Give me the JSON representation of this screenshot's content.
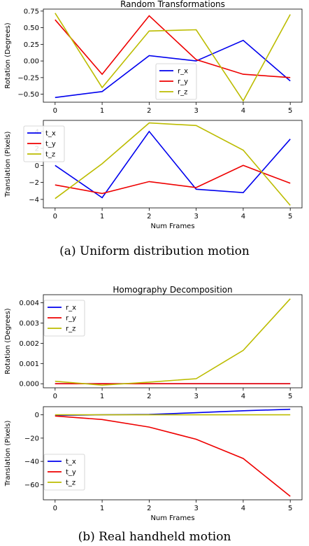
{
  "captions": {
    "a": "(a) Uniform distribution motion",
    "b": "(b) Real handheld motion"
  },
  "chart_data": [
    {
      "type": "line",
      "title": "Random Transformations",
      "xlabel": "",
      "ylabel": "Rotation (Degrees)",
      "x": [
        0,
        1,
        2,
        3,
        4,
        5
      ],
      "ylim": [
        -0.62,
        0.78
      ],
      "yticks": [
        -0.5,
        -0.25,
        0.0,
        0.25,
        0.5,
        0.75
      ],
      "ytick_labels": [
        "−0.50",
        "−0.25",
        "0.00",
        "0.25",
        "0.50",
        "0.75"
      ],
      "legend_position": "center",
      "series": [
        {
          "name": "r_x",
          "color": "#0000ee",
          "values": [
            -0.55,
            -0.46,
            0.08,
            0.0,
            0.31,
            -0.3
          ]
        },
        {
          "name": "r_y",
          "color": "#ee0000",
          "values": [
            0.62,
            -0.2,
            0.68,
            0.02,
            -0.2,
            -0.25
          ]
        },
        {
          "name": "r_z",
          "color": "#bcbc00",
          "values": [
            0.72,
            -0.4,
            0.45,
            0.47,
            -0.6,
            0.7
          ]
        }
      ]
    },
    {
      "type": "line",
      "title": "",
      "xlabel": "Num Frames",
      "ylabel": "Translation (Pixels)",
      "x": [
        0,
        1,
        2,
        3,
        4,
        5
      ],
      "ylim": [
        -5.0,
        5.3
      ],
      "yticks": [
        -4,
        -2,
        0,
        2,
        4
      ],
      "ytick_labels": [
        "−4",
        "−2",
        "0",
        "2",
        "4"
      ],
      "legend_position": "top-left",
      "series": [
        {
          "name": "t_x",
          "color": "#0000ee",
          "values": [
            0.0,
            -3.8,
            4.0,
            -2.8,
            -3.2,
            3.1
          ]
        },
        {
          "name": "t_y",
          "color": "#ee0000",
          "values": [
            -2.3,
            -3.3,
            -1.9,
            -2.6,
            0.0,
            -2.1
          ]
        },
        {
          "name": "t_z",
          "color": "#bcbc00",
          "values": [
            -3.9,
            0.2,
            5.0,
            4.7,
            1.8,
            -4.7
          ]
        }
      ]
    },
    {
      "type": "line",
      "title": "Homography Decomposition",
      "xlabel": "",
      "ylabel": "Rotation (Degrees)",
      "x": [
        0,
        1,
        2,
        3,
        4,
        5
      ],
      "ylim": [
        -0.0002,
        0.0044
      ],
      "yticks": [
        0.0,
        0.001,
        0.002,
        0.003,
        0.004
      ],
      "ytick_labels": [
        "0.000",
        "0.001",
        "0.002",
        "0.003",
        "0.004"
      ],
      "legend_position": "top-left",
      "series": [
        {
          "name": "r_x",
          "color": "#0000ee",
          "values": [
            0.0,
            0.0,
            0.0,
            0.0,
            0.0,
            0.0
          ]
        },
        {
          "name": "r_y",
          "color": "#ee0000",
          "values": [
            0.0,
            0.0,
            0.0,
            0.0,
            0.0,
            0.0
          ]
        },
        {
          "name": "r_z",
          "color": "#bcbc00",
          "values": [
            0.00012,
            -7e-05,
            8e-05,
            0.00025,
            0.00165,
            0.0042
          ]
        }
      ]
    },
    {
      "type": "line",
      "title": "",
      "xlabel": "Num Frames",
      "ylabel": "Translation (Pixels)",
      "x": [
        0,
        1,
        2,
        3,
        4,
        5
      ],
      "ylim": [
        -73,
        7
      ],
      "yticks": [
        0,
        -20,
        -40,
        -60
      ],
      "ytick_labels": [
        "0",
        "−20",
        "−40",
        "−60"
      ],
      "legend_position": "bottom-left",
      "series": [
        {
          "name": "t_x",
          "color": "#0000ee",
          "values": [
            -0.5,
            0.0,
            0.3,
            1.8,
            3.5,
            4.8
          ]
        },
        {
          "name": "t_y",
          "color": "#ee0000",
          "values": [
            -1.0,
            -4.0,
            -10.5,
            -21.0,
            -37.5,
            -70.0
          ]
        },
        {
          "name": "t_z",
          "color": "#bcbc00",
          "values": [
            0.0,
            0.0,
            0.0,
            0.0,
            0.0,
            0.0
          ]
        }
      ]
    }
  ]
}
